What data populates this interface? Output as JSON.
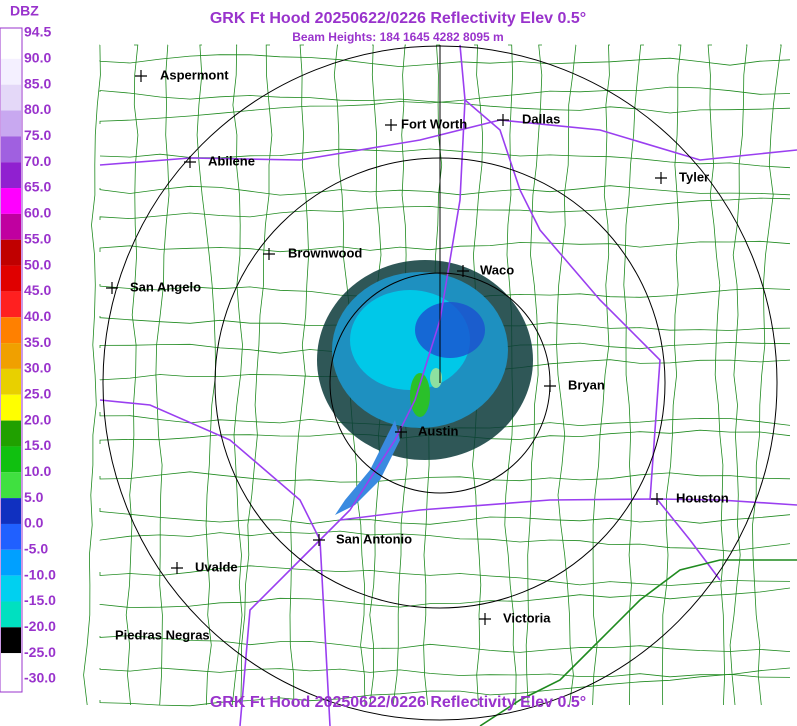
{
  "header": {
    "title": "GRK Ft Hood 20250622/0226 Reflectivity Elev 0.5°",
    "subtitle": "Beam Heights: 184 1645 4282 8095 m"
  },
  "footer": {
    "title": "GRK Ft Hood 20250622/0226 Reflectivity Elev 0.5°"
  },
  "legend": {
    "unit": "DBZ",
    "labels": [
      "94.5",
      "90.0",
      "85.0",
      "80.0",
      "75.0",
      "70.0",
      "65.0",
      "60.0",
      "55.0",
      "50.0",
      "45.0",
      "40.0",
      "35.0",
      "30.0",
      "25.0",
      "20.0",
      "15.0",
      "10.0",
      "5.0",
      "0.0",
      "-5.0",
      "-10.0",
      "-15.0",
      "-20.0",
      "-25.0",
      "-30.0"
    ]
  },
  "cities": [
    {
      "label": "Aspermont"
    },
    {
      "label": "Fort Worth"
    },
    {
      "label": "Dallas"
    },
    {
      "label": "Abilene"
    },
    {
      "label": "Tyler"
    },
    {
      "label": "Brownwood"
    },
    {
      "label": "Waco"
    },
    {
      "label": "San Angelo"
    },
    {
      "label": "Bryan"
    },
    {
      "label": "Austin"
    },
    {
      "label": "Houston"
    },
    {
      "label": "San Antonio"
    },
    {
      "label": "Uvalde"
    },
    {
      "label": "Piedras Negras"
    },
    {
      "label": "Victoria"
    }
  ]
}
